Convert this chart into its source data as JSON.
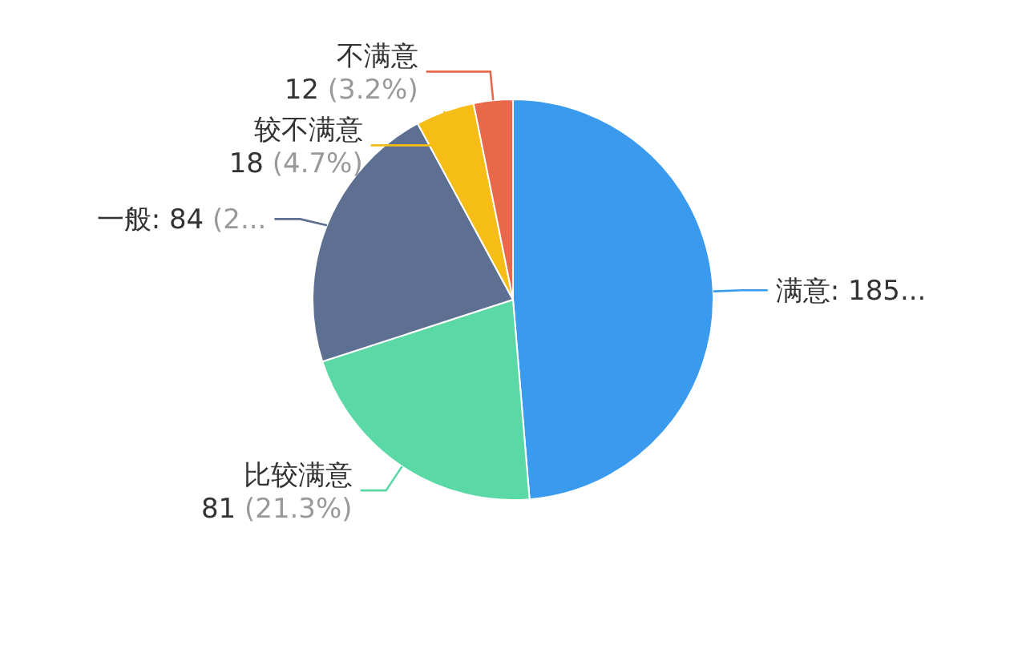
{
  "chart_data": {
    "type": "pie",
    "categories": [
      "满意",
      "比较满意",
      "一般",
      "较不满意",
      "不满意"
    ],
    "values": [
      185,
      81,
      84,
      18,
      12
    ],
    "colors": [
      "#3a9bee",
      "#5ad8a6",
      "#5d7092",
      "#f6bd16",
      "#e8684a"
    ],
    "value_labels": [
      ": 185...",
      "81 (21.3%)",
      ": 84 (2...",
      "18 (4.7%)",
      "12 (3.2%)"
    ],
    "legend": false
  }
}
